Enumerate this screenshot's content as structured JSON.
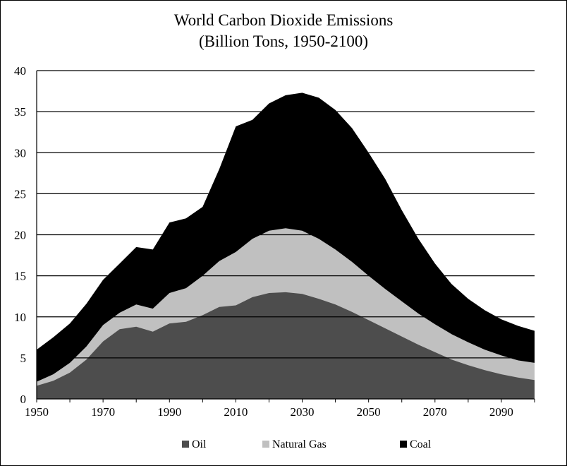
{
  "chart_data": {
    "type": "area",
    "stacked": true,
    "title": "World Carbon Dioxide Emissions",
    "subtitle": "(Billion  Tons, 1950-2100)",
    "xlabel": "",
    "ylabel": "",
    "xlim": [
      1950,
      2100
    ],
    "ylim": [
      0,
      40
    ],
    "x_ticks": [
      1950,
      1970,
      1990,
      2010,
      2030,
      2050,
      2070,
      2090
    ],
    "y_ticks": [
      0,
      5,
      10,
      15,
      20,
      25,
      30,
      35,
      40
    ],
    "grid": "horizontal",
    "legend_position": "bottom",
    "x": [
      1950,
      1955,
      1960,
      1965,
      1970,
      1975,
      1980,
      1985,
      1990,
      1995,
      2000,
      2005,
      2010,
      2015,
      2020,
      2025,
      2030,
      2035,
      2040,
      2045,
      2050,
      2055,
      2060,
      2065,
      2070,
      2075,
      2080,
      2085,
      2090,
      2095,
      2100
    ],
    "series": [
      {
        "name": "Oil",
        "color": "#4d4d4d",
        "values": [
          1.6,
          2.2,
          3.2,
          4.8,
          7.0,
          8.5,
          8.8,
          8.2,
          9.2,
          9.4,
          10.2,
          11.2,
          11.4,
          12.4,
          12.9,
          13.0,
          12.8,
          12.2,
          11.5,
          10.6,
          9.6,
          8.6,
          7.6,
          6.6,
          5.7,
          4.8,
          4.1,
          3.5,
          3.0,
          2.6,
          2.3
        ]
      },
      {
        "name": "Natural Gas",
        "color": "#c0c0c0",
        "values": [
          2.1,
          3.0,
          4.4,
          6.4,
          9.0,
          10.5,
          11.5,
          11.0,
          12.9,
          13.5,
          15.0,
          16.8,
          17.9,
          19.5,
          20.5,
          20.8,
          20.5,
          19.5,
          18.2,
          16.7,
          15.0,
          13.4,
          11.9,
          10.4,
          9.1,
          7.9,
          6.9,
          6.0,
          5.3,
          4.7,
          4.4
        ]
      },
      {
        "name": "Coal",
        "color": "#000000",
        "values": [
          6.0,
          7.5,
          9.2,
          11.6,
          14.5,
          16.5,
          18.5,
          18.2,
          21.5,
          22.0,
          23.4,
          28.0,
          33.2,
          34.0,
          36.0,
          37.0,
          37.3,
          36.7,
          35.2,
          33.0,
          30.0,
          26.8,
          23.0,
          19.5,
          16.5,
          14.0,
          12.2,
          10.8,
          9.7,
          8.9,
          8.3
        ]
      }
    ]
  }
}
